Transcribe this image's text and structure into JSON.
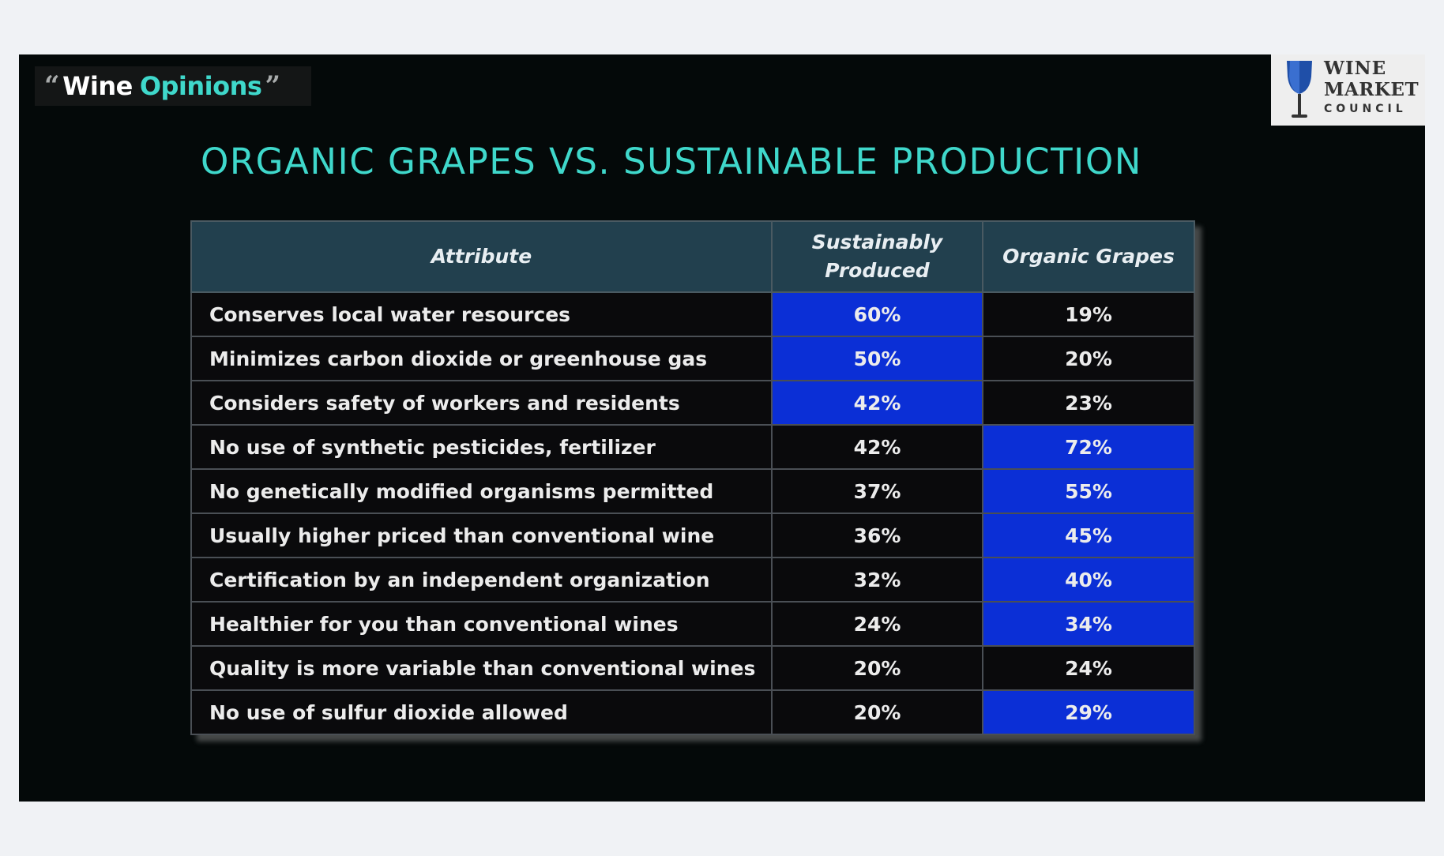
{
  "logo": {
    "open_quote": "“",
    "word1": "Wine",
    "word2": "Opinions",
    "close_quote": "”"
  },
  "council_logo": {
    "line1": "WINE",
    "line2": "MARKET",
    "line3": "COUNCIL"
  },
  "title": "ORGANIC GRAPES VS. SUSTAINABLE PRODUCTION",
  "colors": {
    "accent_teal": "#3fd8cb",
    "highlight_blue": "#0b2fd6",
    "header_bg": "#22404e",
    "slide_bg": "#040909"
  },
  "chart_data": {
    "type": "table",
    "columns": [
      "Attribute",
      "Sustainably Produced",
      "Organic Grapes"
    ],
    "rows": [
      {
        "attribute": "Conserves local water resources",
        "sustainably": "60%",
        "organic": "19%",
        "highlight": "sustainably"
      },
      {
        "attribute": "Minimizes carbon dioxide or greenhouse gas",
        "sustainably": "50%",
        "organic": "20%",
        "highlight": "sustainably"
      },
      {
        "attribute": "Considers safety of workers and residents",
        "sustainably": "42%",
        "organic": "23%",
        "highlight": "sustainably"
      },
      {
        "attribute": "No use of synthetic pesticides, fertilizer",
        "sustainably": "42%",
        "organic": "72%",
        "highlight": "organic"
      },
      {
        "attribute": "No genetically modified organisms permitted",
        "sustainably": "37%",
        "organic": "55%",
        "highlight": "organic"
      },
      {
        "attribute": "Usually higher priced than conventional wine",
        "sustainably": "36%",
        "organic": "45%",
        "highlight": "organic"
      },
      {
        "attribute": "Certification by an independent organization",
        "sustainably": "32%",
        "organic": "40%",
        "highlight": "organic"
      },
      {
        "attribute": "Healthier for you than conventional wines",
        "sustainably": "24%",
        "organic": "34%",
        "highlight": "organic"
      },
      {
        "attribute": "Quality is more variable than conventional wines",
        "sustainably": "20%",
        "organic": "24%",
        "highlight": "none"
      },
      {
        "attribute": "No use of sulfur dioxide allowed",
        "sustainably": "20%",
        "organic": "29%",
        "highlight": "organic"
      }
    ]
  }
}
